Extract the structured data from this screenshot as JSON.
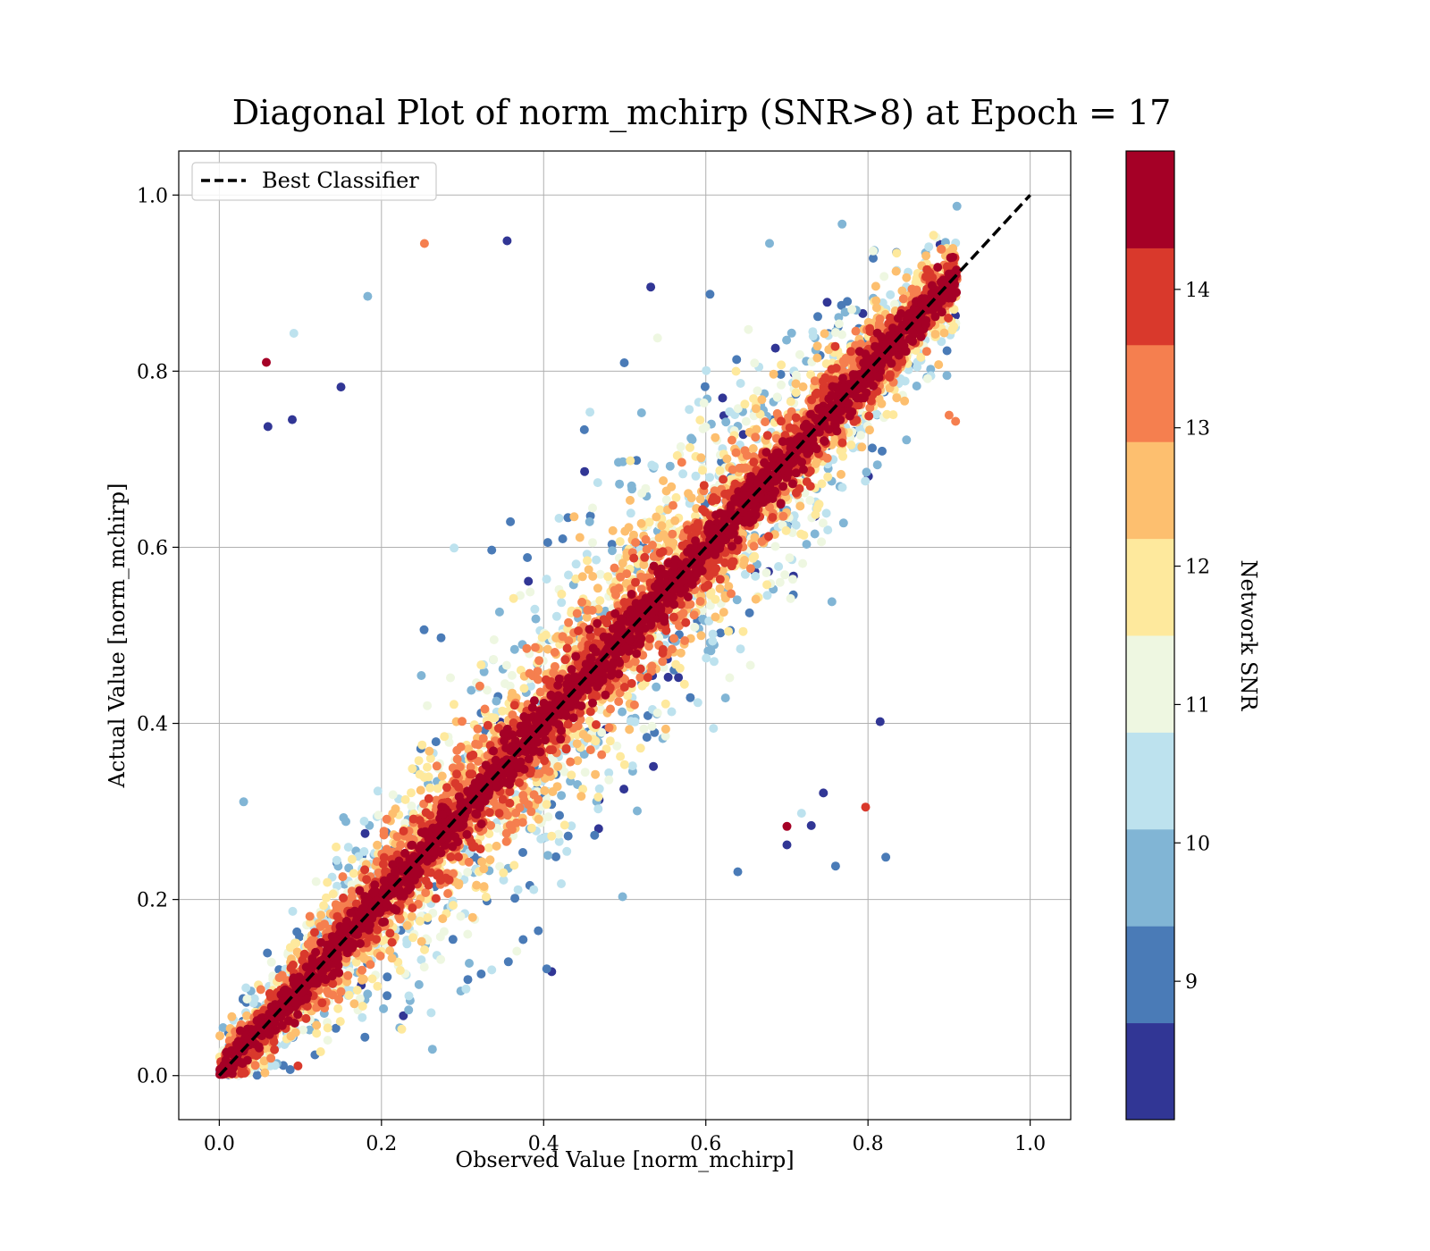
{
  "chart_data": {
    "type": "scatter",
    "title": "Diagonal Plot of norm_mchirp (SNR>8) at Epoch = 17",
    "xlabel": "Observed Value [norm_mchirp]",
    "ylabel": "Actual Value [norm_mchirp]",
    "xlim": [
      -0.05,
      1.05
    ],
    "ylim": [
      -0.05,
      1.05
    ],
    "xticks": [
      "0.0",
      "0.2",
      "0.4",
      "0.6",
      "0.8",
      "1.0"
    ],
    "yticks": [
      "0.0",
      "0.2",
      "0.4",
      "0.6",
      "0.8",
      "1.0"
    ],
    "grid": true,
    "legend": {
      "placement": "upper-left",
      "entries": [
        "Best Classifier"
      ]
    },
    "reference_line": {
      "name": "Best Classifier",
      "style": "dashed",
      "color": "#000000",
      "points": [
        [
          0,
          0
        ],
        [
          1,
          1
        ]
      ]
    },
    "colorbar": {
      "label": "Network SNR",
      "ticks": [
        "9",
        "10",
        "11",
        "12",
        "13",
        "14"
      ],
      "range": [
        8,
        15
      ],
      "bins": [
        {
          "from": 8.0,
          "to": 8.7,
          "color": "#313695"
        },
        {
          "from": 8.7,
          "to": 9.4,
          "color": "#4a7bb7"
        },
        {
          "from": 9.4,
          "to": 10.1,
          "color": "#81b5d5"
        },
        {
          "from": 10.1,
          "to": 10.8,
          "color": "#bde2ee"
        },
        {
          "from": 10.8,
          "to": 11.5,
          "color": "#eef7e1"
        },
        {
          "from": 11.5,
          "to": 12.2,
          "color": "#fee99d"
        },
        {
          "from": 12.2,
          "to": 12.9,
          "color": "#fdbf6f"
        },
        {
          "from": 12.9,
          "to": 13.6,
          "color": "#f57f4f"
        },
        {
          "from": 13.6,
          "to": 14.3,
          "color": "#d9392c"
        },
        {
          "from": 14.3,
          "to": 15.0,
          "color": "#a50026"
        }
      ]
    },
    "scatter_summary": {
      "relation": "points cluster along y = x, densest in the red (high SNR) band, with spread growing toward mid-range values",
      "x_range": [
        0.0,
        0.91
      ],
      "y_range": [
        0.0,
        1.0
      ]
    },
    "outliers": [
      {
        "x": 0.058,
        "y": 0.81,
        "snr": 14.5
      },
      {
        "x": 0.253,
        "y": 0.945,
        "snr": 13.0
      },
      {
        "x": 0.355,
        "y": 0.948,
        "snr": 8.5
      },
      {
        "x": 0.092,
        "y": 0.843,
        "snr": 10.5
      },
      {
        "x": 0.183,
        "y": 0.885,
        "snr": 9.8
      },
      {
        "x": 0.41,
        "y": 0.118,
        "snr": 8.5
      },
      {
        "x": 0.227,
        "y": 0.068,
        "snr": 8.5
      },
      {
        "x": 0.097,
        "y": 0.011,
        "snr": 14.0
      },
      {
        "x": 0.822,
        "y": 0.248,
        "snr": 9.0
      },
      {
        "x": 0.797,
        "y": 0.305,
        "snr": 14.0
      },
      {
        "x": 0.76,
        "y": 0.238,
        "snr": 9.0
      },
      {
        "x": 0.815,
        "y": 0.402,
        "snr": 8.5
      },
      {
        "x": 0.908,
        "y": 0.743,
        "snr": 13.0
      },
      {
        "x": 0.06,
        "y": 0.737,
        "snr": 8.5
      },
      {
        "x": 0.09,
        "y": 0.745,
        "snr": 8.5
      },
      {
        "x": 0.15,
        "y": 0.782,
        "snr": 8.5
      },
      {
        "x": 0.03,
        "y": 0.311,
        "snr": 9.5
      },
      {
        "x": 0.7,
        "y": 0.262,
        "snr": 8.5
      },
      {
        "x": 0.745,
        "y": 0.321,
        "snr": 8.5
      },
      {
        "x": 0.7,
        "y": 0.283,
        "snr": 14.5
      },
      {
        "x": 0.73,
        "y": 0.284,
        "snr": 8.5
      },
      {
        "x": 0.718,
        "y": 0.298,
        "snr": 10.5
      },
      {
        "x": 0.9,
        "y": 0.75,
        "snr": 13.0
      }
    ]
  }
}
